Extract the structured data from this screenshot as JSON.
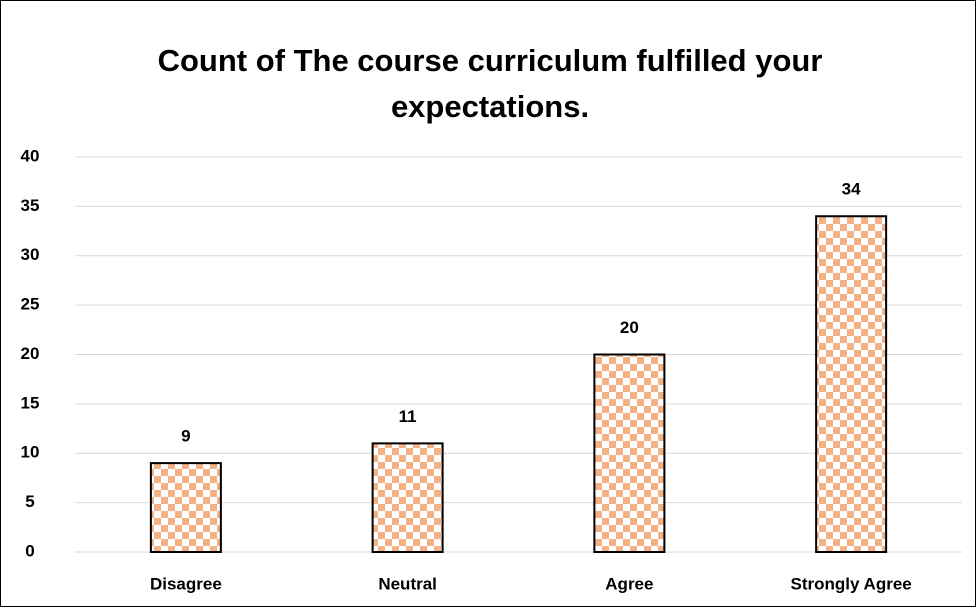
{
  "chart_data": {
    "type": "bar",
    "title": "Count of The course curriculum fulfilled your expectations.",
    "categories": [
      "Disagree",
      "Neutral",
      "Agree",
      "Strongly Agree"
    ],
    "values": [
      9,
      11,
      20,
      34
    ],
    "color": "#f4b183",
    "ylim": [
      0,
      40
    ],
    "yticks": [
      0,
      5,
      10,
      15,
      20,
      25,
      30,
      35,
      40
    ],
    "grid": true
  }
}
